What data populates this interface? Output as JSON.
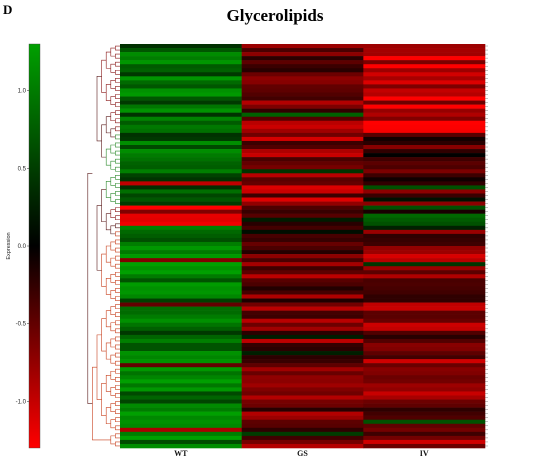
{
  "panel_letter": "D",
  "title": "Glycerolipids",
  "chart_data": {
    "type": "heatmap",
    "title": "Glycerolipids",
    "columns": [
      "WT",
      "GS",
      "IV"
    ],
    "colorbar": {
      "label": "Expression",
      "ticks": [
        1.0,
        0.5,
        0.0,
        -0.5,
        -1.0
      ],
      "tick_labels": [
        "1.0",
        "0.5",
        "0.0",
        "-0.5",
        "-1.0"
      ],
      "range": [
        -1.3,
        1.3
      ],
      "colors": {
        "high": "#00a000",
        "mid": "#000000",
        "low": "#ff0000"
      }
    },
    "row_count": 100,
    "row_groups": [
      {
        "rows": 22,
        "WT": 0.85,
        "GS": -0.6,
        "IV": -1.0
      },
      {
        "rows": 18,
        "WT": 0.8,
        "GS": -0.75,
        "IV": -0.45
      },
      {
        "rows": 5,
        "WT": -1.1,
        "GS": -0.2,
        "IV": 0.6
      },
      {
        "rows": 55,
        "WT": 0.9,
        "GS": -0.55,
        "IV": -0.65
      }
    ]
  }
}
